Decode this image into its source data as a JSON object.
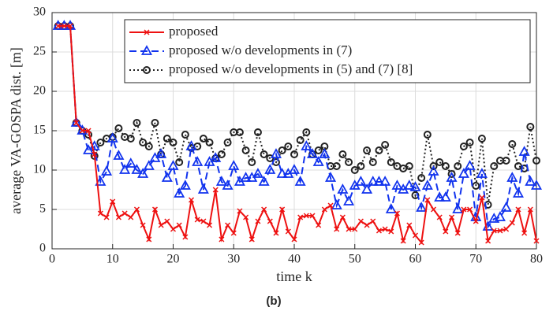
{
  "chart_data": {
    "type": "line",
    "caption": "(b)",
    "xlabel": "time k",
    "ylabel": "average VA-GOSPA dist. [m]",
    "xlim": [
      0,
      80
    ],
    "ylim": [
      0,
      30
    ],
    "xticks": [
      0,
      10,
      20,
      30,
      40,
      50,
      60,
      70,
      80
    ],
    "yticks": [
      0,
      5,
      10,
      15,
      20,
      25,
      30
    ],
    "grid": true,
    "legend": "upper right",
    "x": [
      1,
      2,
      3,
      4,
      5,
      6,
      7,
      8,
      9,
      10,
      11,
      12,
      13,
      14,
      15,
      16,
      17,
      18,
      19,
      20,
      21,
      22,
      23,
      24,
      25,
      26,
      27,
      28,
      29,
      30,
      31,
      32,
      33,
      34,
      35,
      36,
      37,
      38,
      39,
      40,
      41,
      42,
      43,
      44,
      45,
      46,
      47,
      48,
      49,
      50,
      51,
      52,
      53,
      54,
      55,
      56,
      57,
      58,
      59,
      60,
      61,
      62,
      63,
      64,
      65,
      66,
      67,
      68,
      69,
      70,
      71,
      72,
      73,
      74,
      75,
      76,
      77,
      78,
      79,
      80
    ],
    "series": [
      {
        "name": "proposed",
        "color": "#ee1111",
        "marker": "x",
        "linestyle": "solid",
        "values": [
          28.3,
          28.3,
          28.3,
          16,
          15,
          15,
          12,
          4.5,
          4,
          6,
          4,
          4.5,
          4,
          5,
          3,
          1.2,
          5,
          3,
          3.5,
          2.5,
          3,
          1.5,
          6.2,
          3.7,
          3.5,
          3,
          7.5,
          1.2,
          3,
          2,
          4.8,
          4,
          1.2,
          3.5,
          5,
          3.5,
          2,
          5,
          2.2,
          1.2,
          4,
          4.2,
          4.2,
          3,
          5,
          5.5,
          2.5,
          4,
          2.5,
          2.5,
          3.5,
          3,
          3.5,
          2.3,
          2.5,
          2.2,
          4.5,
          1,
          3,
          1.7,
          0.8,
          6.2,
          5,
          4,
          2.2,
          4,
          2,
          5,
          5,
          3.5,
          6.5,
          1,
          2.3,
          2.3,
          2.5,
          3.3,
          5,
          2,
          5,
          1
        ]
      },
      {
        "name": "proposed w/o developments in (7)",
        "color": "#1133ee",
        "marker": "triangle",
        "linestyle": "dashed",
        "values": [
          28.3,
          28.3,
          28.3,
          16,
          15,
          12.5,
          13,
          8.5,
          9.8,
          14,
          11.8,
          10,
          10.8,
          10,
          9.5,
          10.5,
          11.5,
          12,
          9,
          10.5,
          7,
          8,
          13,
          11,
          7.5,
          11,
          11.5,
          8.5,
          8,
          10.5,
          8.5,
          9,
          9,
          9.5,
          8.5,
          10,
          12,
          9.5,
          9.5,
          10,
          8.5,
          13,
          12,
          11,
          12,
          9,
          5.5,
          7.5,
          6,
          8,
          8.5,
          7.5,
          8.5,
          8.5,
          8.5,
          5,
          8,
          7.5,
          8,
          7.8,
          5.2,
          8,
          9.8,
          6.5,
          6.5,
          9,
          5,
          9.5,
          10.5,
          4,
          9.5,
          2.8,
          3.8,
          4,
          5.2,
          9,
          7,
          12.3,
          8.5,
          8
        ]
      },
      {
        "name": "proposed w/o developments in (5) and (7) [8]",
        "color": "#222222",
        "marker": "circle",
        "linestyle": "dotted",
        "values": [
          28.3,
          28.3,
          28.3,
          16,
          15,
          14.5,
          11.8,
          13.5,
          14,
          14.2,
          15.3,
          14.2,
          14,
          16,
          13.5,
          13,
          16,
          12,
          14,
          13.5,
          11,
          14.5,
          12.8,
          13,
          14,
          13.5,
          11.5,
          12,
          13.5,
          14.8,
          14.8,
          12.5,
          11,
          14.8,
          12,
          11.5,
          11,
          12.5,
          13,
          12,
          13.8,
          14.8,
          12,
          12.5,
          13,
          10.5,
          10.5,
          12,
          11,
          10,
          10.5,
          12.5,
          11,
          12.5,
          13.2,
          11,
          10.5,
          10.2,
          10.5,
          6.8,
          9,
          14.5,
          10.5,
          11,
          10.5,
          9.5,
          10.5,
          13,
          13.5,
          8,
          14,
          5.6,
          10.5,
          11.2,
          11.2,
          13.3,
          10.5,
          10.2,
          15.5,
          11.2
        ]
      }
    ]
  }
}
